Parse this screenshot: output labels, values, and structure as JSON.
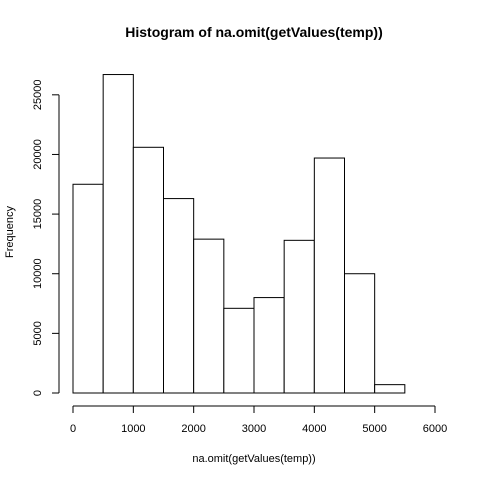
{
  "chart_data": {
    "type": "bar",
    "title": "Histogram of na.omit(getValues(temp))",
    "xlabel": "na.omit(getValues(temp))",
    "ylabel": "Frequency",
    "bins": [
      {
        "start": 0,
        "end": 500,
        "count": 17500
      },
      {
        "start": 500,
        "end": 1000,
        "count": 26700
      },
      {
        "start": 1000,
        "end": 1500,
        "count": 20600
      },
      {
        "start": 1500,
        "end": 2000,
        "count": 16300
      },
      {
        "start": 2000,
        "end": 2500,
        "count": 12900
      },
      {
        "start": 2500,
        "end": 3000,
        "count": 7100
      },
      {
        "start": 3000,
        "end": 3500,
        "count": 8000
      },
      {
        "start": 3500,
        "end": 4000,
        "count": 12800
      },
      {
        "start": 4000,
        "end": 4500,
        "count": 19700
      },
      {
        "start": 4500,
        "end": 5000,
        "count": 10000
      },
      {
        "start": 5000,
        "end": 5500,
        "count": 700
      }
    ],
    "xlim": [
      0,
      6000
    ],
    "ylim": [
      0,
      27500
    ],
    "xticks": [
      0,
      1000,
      2000,
      3000,
      4000,
      5000,
      6000
    ],
    "yticks": [
      0,
      5000,
      10000,
      15000,
      20000,
      25000
    ],
    "bar_fill": "#ffffff",
    "bar_stroke": "#000000",
    "grid": false,
    "legend": "none"
  }
}
